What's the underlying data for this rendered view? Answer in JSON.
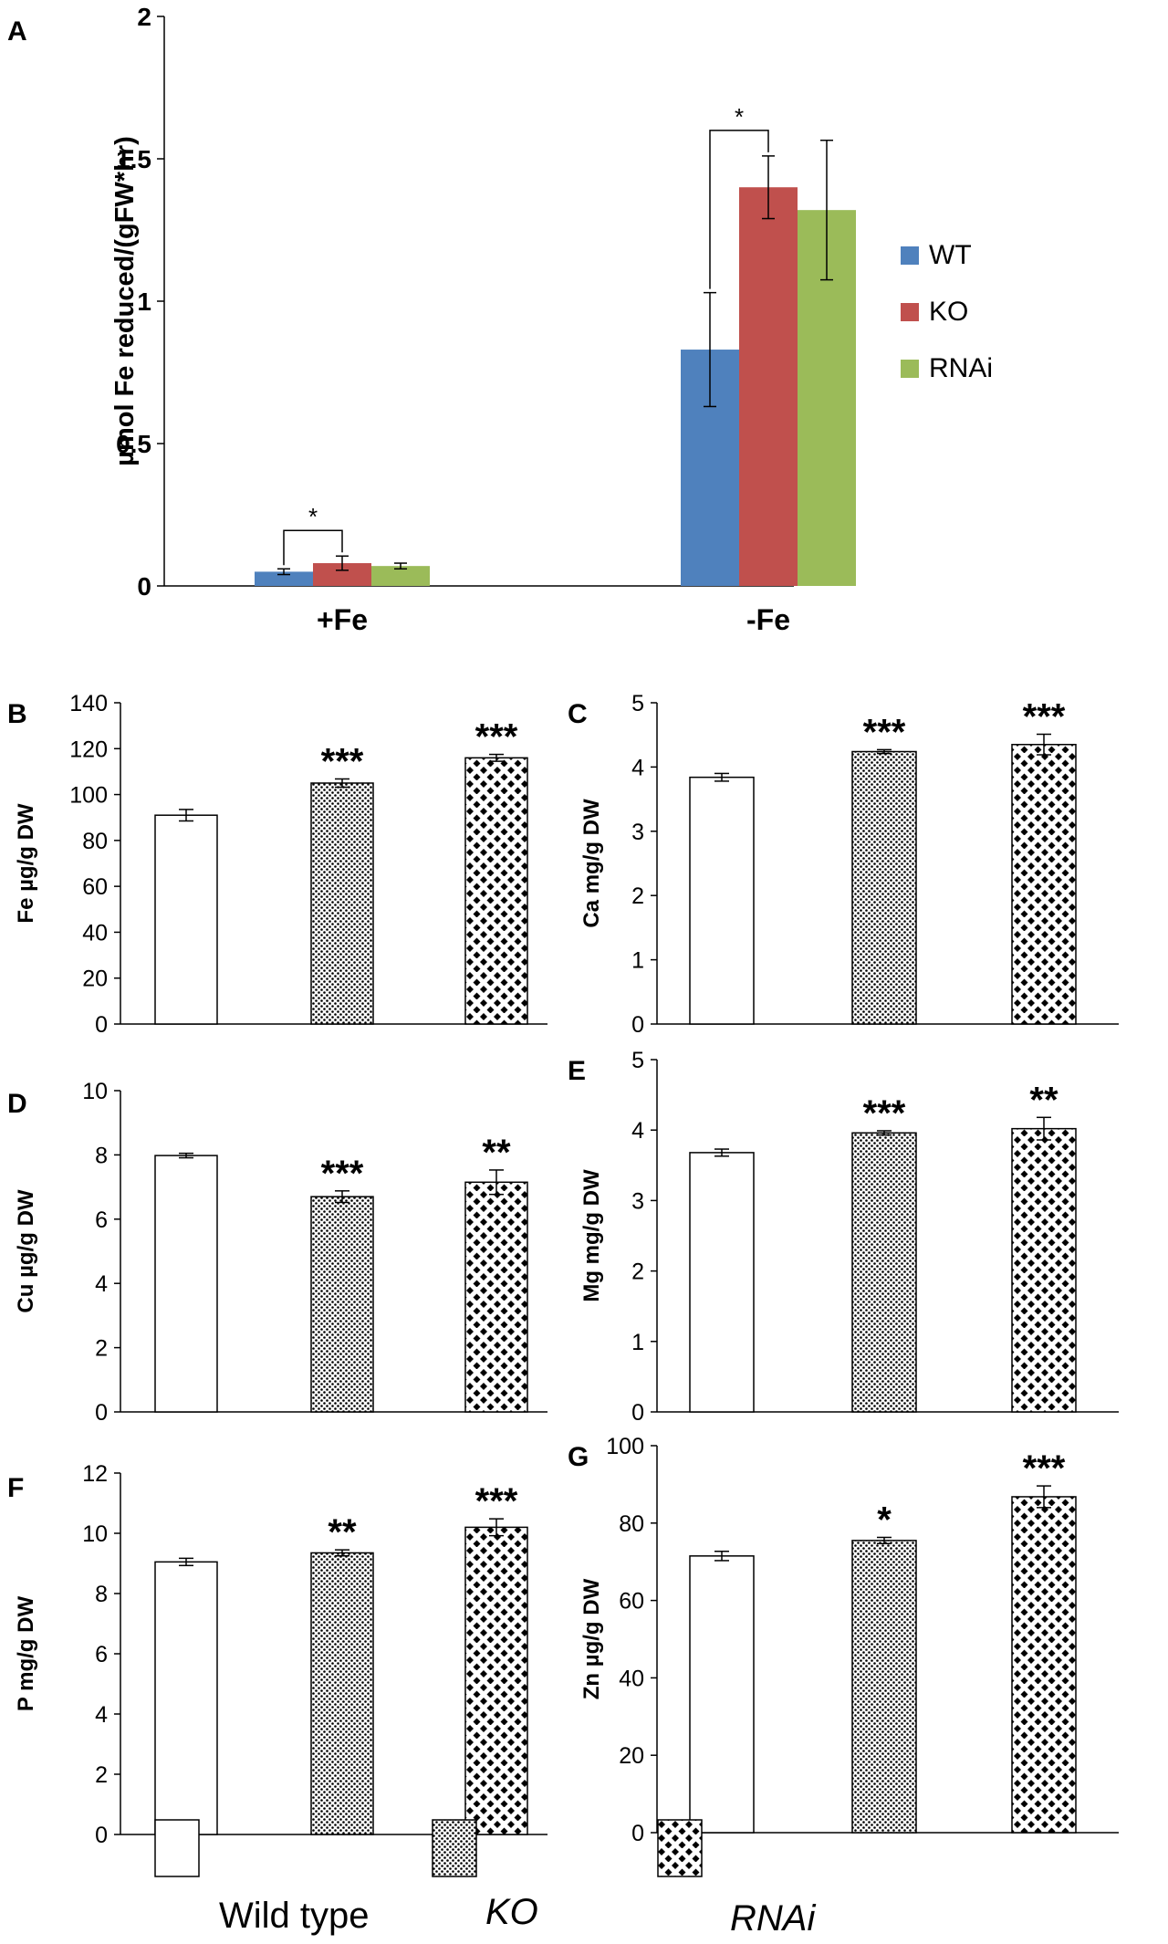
{
  "figure": {
    "patterns": {
      "wt_fill": "#ffffff",
      "ko_dot": "#000000",
      "rnai_cross": "#000000"
    },
    "legend": {
      "wt_label": "Wild type",
      "ko_label": "KO",
      "rnai_label": "RNAi"
    }
  },
  "chart_data": [
    {
      "id": "A",
      "panel_letter": "A",
      "type": "bar",
      "ylabel": "µmol Fe reduced/(gFW*hr)",
      "ylim": [
        0,
        2
      ],
      "yticks": [
        0,
        0.5,
        1,
        1.5,
        2
      ],
      "ytick_labels": [
        "0",
        "0.5",
        "1",
        "1.5",
        "2"
      ],
      "categories": [
        "+Fe",
        "-Fe"
      ],
      "series": [
        {
          "name": "WT",
          "color": "#4F81BD",
          "values": [
            0.05,
            0.83
          ],
          "errors": [
            0.01,
            0.2
          ]
        },
        {
          "name": "KO",
          "color": "#C0504D",
          "values": [
            0.08,
            1.4
          ],
          "errors": [
            0.025,
            0.11
          ]
        },
        {
          "name": "RNAi",
          "color": "#9BBB59",
          "values": [
            0.07,
            1.32
          ],
          "errors": [
            0.01,
            0.245
          ]
        }
      ],
      "significance": [
        {
          "category": "+Fe",
          "between": [
            "WT",
            "KO"
          ],
          "label": "*"
        },
        {
          "category": "-Fe",
          "between": [
            "WT",
            "KO"
          ],
          "label": "*"
        }
      ],
      "legend_position": "right"
    },
    {
      "id": "B",
      "panel_letter": "B",
      "type": "bar",
      "ylabel": "Fe µg/g DW",
      "ylim": [
        0,
        140
      ],
      "yticks": [
        0,
        20,
        40,
        60,
        80,
        100,
        120,
        140
      ],
      "ytick_labels": [
        "0",
        "20",
        "40",
        "60",
        "80",
        "100",
        "120",
        "140"
      ],
      "categories": [
        "Wild type",
        "KO",
        "RNAi"
      ],
      "values": [
        91,
        105,
        116
      ],
      "errors": [
        2.5,
        1.8,
        1.5
      ],
      "significance": [
        "",
        "***",
        "***"
      ]
    },
    {
      "id": "C",
      "panel_letter": "C",
      "type": "bar",
      "ylabel": "Ca mg/g DW",
      "ylim": [
        0,
        5
      ],
      "yticks": [
        0,
        1,
        2,
        3,
        4,
        5
      ],
      "ytick_labels": [
        "0",
        "1",
        "2",
        "3",
        "4",
        "5"
      ],
      "categories": [
        "Wild type",
        "KO",
        "RNAi"
      ],
      "values": [
        3.84,
        4.24,
        4.35
      ],
      "errors": [
        0.06,
        0.03,
        0.16
      ],
      "significance": [
        "",
        "***",
        "***"
      ]
    },
    {
      "id": "D",
      "panel_letter": "D",
      "type": "bar",
      "ylabel": "Cu µg/g DW",
      "ylim": [
        0,
        10
      ],
      "yticks": [
        0,
        2,
        4,
        6,
        8,
        10
      ],
      "ytick_labels": [
        "0",
        "2",
        "4",
        "6",
        "8",
        "10"
      ],
      "categories": [
        "Wild type",
        "KO",
        "RNAi"
      ],
      "values": [
        7.98,
        6.7,
        7.15
      ],
      "errors": [
        0.07,
        0.18,
        0.38
      ],
      "significance": [
        "",
        "***",
        "**"
      ]
    },
    {
      "id": "E",
      "panel_letter": "E",
      "type": "bar",
      "ylabel": "Mg mg/g DW",
      "ylim": [
        0,
        5
      ],
      "yticks": [
        0,
        1,
        2,
        3,
        4,
        5
      ],
      "ytick_labels": [
        "0",
        "1",
        "2",
        "3",
        "4",
        "5"
      ],
      "categories": [
        "Wild type",
        "KO",
        "RNAi"
      ],
      "values": [
        3.68,
        3.96,
        4.02
      ],
      "errors": [
        0.05,
        0.03,
        0.16
      ],
      "significance": [
        "",
        "***",
        "**"
      ]
    },
    {
      "id": "F",
      "panel_letter": "F",
      "type": "bar",
      "ylabel": "P mg/g DW",
      "ylim": [
        0,
        12
      ],
      "yticks": [
        0,
        2,
        4,
        6,
        8,
        10,
        12
      ],
      "ytick_labels": [
        "0",
        "2",
        "4",
        "6",
        "8",
        "10",
        "12"
      ],
      "categories": [
        "Wild type",
        "KO",
        "RNAi"
      ],
      "values": [
        9.05,
        9.35,
        10.2
      ],
      "errors": [
        0.12,
        0.1,
        0.28
      ],
      "significance": [
        "",
        "**",
        "***"
      ]
    },
    {
      "id": "G",
      "panel_letter": "G",
      "type": "bar",
      "ylabel": "Zn µg/g DW",
      "ylim": [
        0,
        100
      ],
      "yticks": [
        0,
        20,
        40,
        60,
        80,
        100
      ],
      "ytick_labels": [
        "0",
        "20",
        "40",
        "60",
        "80",
        "100"
      ],
      "categories": [
        "Wild type",
        "KO",
        "RNAi"
      ],
      "values": [
        71.5,
        75.5,
        86.8
      ],
      "errors": [
        1.2,
        0.8,
        2.8
      ],
      "significance": [
        "",
        "*",
        "***"
      ]
    }
  ]
}
